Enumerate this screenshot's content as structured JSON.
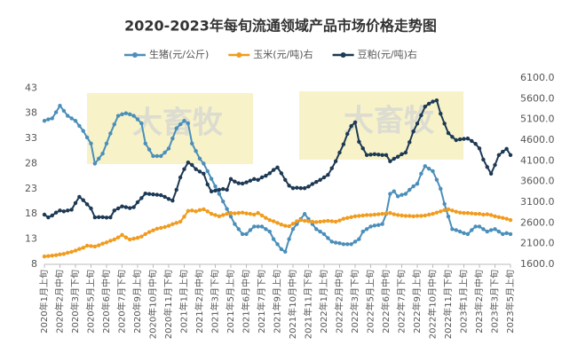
{
  "chart_data": {
    "type": "line",
    "title": "2020-2023年每旬流通领域产品市场价格走势图",
    "categories": [
      "2020年1月上旬",
      null,
      null,
      null,
      "2020年2月中旬",
      null,
      null,
      null,
      "2020年3月下旬",
      null,
      null,
      null,
      "2020年5月上旬",
      null,
      null,
      null,
      "2020年6月中旬",
      null,
      null,
      null,
      "2020年7月下旬",
      null,
      null,
      null,
      "2020年9月上旬",
      null,
      null,
      null,
      "2020年10月中旬",
      null,
      null,
      null,
      "2020年11月下旬",
      null,
      null,
      null,
      "2021年1月上旬",
      null,
      null,
      null,
      "2021年2月中旬",
      null,
      null,
      null,
      "2021年3月下旬",
      null,
      null,
      null,
      "2021年5月上旬",
      null,
      null,
      null,
      "2021年6月中旬",
      null,
      null,
      null,
      "2021年7月下旬",
      null,
      null,
      null,
      "2021年9月上旬",
      null,
      null,
      null,
      "2021年10月中旬",
      null,
      null,
      null,
      "2021年11月下旬",
      null,
      null,
      null,
      "2022年1月上旬",
      null,
      null,
      null,
      "2022年2月中旬",
      null,
      null,
      null,
      "2022年3月下旬",
      null,
      null,
      null,
      "2022年5月上旬",
      null,
      null,
      null,
      "2022年6月中旬",
      null,
      null,
      null,
      "2022年7月下旬",
      null,
      null,
      null,
      "2022年9月上旬",
      null,
      null,
      null,
      "2022年10月中旬",
      null,
      null,
      null,
      "2022年11月下旬",
      null,
      null,
      null,
      "2023年1月上旬",
      null,
      null,
      null,
      "2023年2月中旬",
      null,
      null,
      null,
      "2023年3月下旬",
      null,
      null,
      null,
      "2023年5月上旬"
    ],
    "series": [
      {
        "name": "生猪(元/公斤)",
        "color": "#4a8fba",
        "values": [
          36.5,
          36.8,
          37,
          38.2,
          39.5,
          38.5,
          37.5,
          37,
          36.5,
          35.5,
          34.5,
          33.2,
          32,
          28,
          29,
          30,
          32,
          34,
          35.8,
          37.5,
          37.8,
          38,
          37.8,
          37.5,
          36.8,
          36,
          32,
          30.8,
          29.5,
          29.5,
          29.5,
          30.2,
          31,
          33,
          35,
          35.8,
          36.5,
          36,
          32,
          30.5,
          29,
          28,
          26.5,
          25,
          23.5,
          22,
          20.5,
          19,
          17.5,
          16,
          15,
          14,
          14,
          14.8,
          15.5,
          15.5,
          15.5,
          15,
          14.5,
          13,
          12,
          11,
          10.5,
          13,
          15,
          16,
          17,
          18,
          17,
          16,
          15,
          14.5,
          14,
          13.2,
          12.5,
          12.3,
          12.2,
          12,
          12,
          12,
          12.5,
          13,
          14.5,
          15,
          15.5,
          15.7,
          15.8,
          16,
          18,
          22,
          22.5,
          21.5,
          21.8,
          22,
          22.8,
          23.5,
          24,
          26,
          27.5,
          27,
          26.5,
          24.8,
          23,
          20,
          17.5,
          15,
          14.8,
          14.5,
          14.2,
          14,
          14.8,
          15.5,
          15.5,
          15,
          14.5,
          14.8,
          15,
          14.5,
          14,
          14.2,
          14
        ]
      },
      {
        "name": "玉米(元/吨)右",
        "color": "#f09c1e",
        "axis": "y2",
        "values": [
          1790,
          1800,
          1810,
          1820,
          1840,
          1850,
          1880,
          1900,
          1930,
          1970,
          2000,
          2050,
          2040,
          2030,
          2060,
          2100,
          2130,
          2170,
          2200,
          2250,
          2310,
          2250,
          2200,
          2220,
          2240,
          2270,
          2330,
          2380,
          2420,
          2460,
          2480,
          2500,
          2530,
          2570,
          2600,
          2630,
          2750,
          2890,
          2900,
          2880,
          2910,
          2930,
          2880,
          2820,
          2790,
          2760,
          2790,
          2820,
          2840,
          2830,
          2840,
          2850,
          2830,
          2820,
          2800,
          2840,
          2780,
          2720,
          2670,
          2640,
          2600,
          2560,
          2530,
          2520,
          2580,
          2640,
          2670,
          2650,
          2640,
          2630,
          2620,
          2630,
          2640,
          2650,
          2640,
          2630,
          2660,
          2700,
          2720,
          2740,
          2760,
          2770,
          2780,
          2790,
          2790,
          2800,
          2810,
          2820,
          2830,
          2840,
          2810,
          2790,
          2780,
          2770,
          2770,
          2760,
          2770,
          2770,
          2780,
          2800,
          2820,
          2850,
          2880,
          2910,
          2930,
          2900,
          2870,
          2850,
          2840,
          2840,
          2830,
          2820,
          2820,
          2800,
          2810,
          2790,
          2760,
          2740,
          2720,
          2700,
          2670
        ]
      },
      {
        "name": "豆粕(元/吨)右",
        "color": "#1d3954",
        "axis": "y2",
        "values": [
          2800,
          2735,
          2780,
          2850,
          2900,
          2880,
          2900,
          2920,
          3080,
          3230,
          3150,
          3050,
          2950,
          2735,
          2740,
          2740,
          2730,
          2735,
          2900,
          2950,
          3000,
          2980,
          2960,
          2980,
          3100,
          3200,
          3310,
          3300,
          3290,
          3280,
          3270,
          3230,
          3180,
          3140,
          3400,
          3700,
          3900,
          4060,
          4000,
          3900,
          3840,
          3790,
          3530,
          3360,
          3380,
          3400,
          3420,
          3400,
          3660,
          3600,
          3560,
          3550,
          3580,
          3620,
          3660,
          3640,
          3700,
          3740,
          3800,
          3880,
          3940,
          3800,
          3640,
          3500,
          3440,
          3450,
          3440,
          3440,
          3480,
          3540,
          3590,
          3640,
          3700,
          3760,
          3920,
          4090,
          4300,
          4500,
          4750,
          4940,
          5030,
          4560,
          4400,
          4240,
          4250,
          4260,
          4250,
          4240,
          4240,
          4090,
          4150,
          4200,
          4260,
          4300,
          4550,
          4810,
          5000,
          5200,
          5410,
          5480,
          5530,
          5560,
          5240,
          5000,
          4770,
          4680,
          4600,
          4620,
          4630,
          4640,
          4580,
          4510,
          4400,
          4130,
          3950,
          3790,
          4000,
          4240,
          4320,
          4390,
          4240
        ]
      }
    ],
    "ylim": [
      8,
      45
    ],
    "yticks": [
      8,
      13,
      18,
      23,
      28,
      33,
      38,
      43
    ],
    "y2lim": [
      1600,
      6100
    ],
    "y2ticks": [
      {
        "value": 1600,
        "label": "1600.0"
      },
      {
        "value": 2100,
        "label": "2100.0"
      },
      {
        "value": 2600,
        "label": "2600.0"
      },
      {
        "value": 3100,
        "label": "3100.0"
      },
      {
        "value": 3600,
        "label": "3600.0"
      },
      {
        "value": 4100,
        "label": "4100.0"
      },
      {
        "value": 4600,
        "label": "4600.0"
      },
      {
        "value": 5100,
        "label": "5100.0"
      },
      {
        "value": 5600,
        "label": "5600.0"
      },
      {
        "value": 6100,
        "label": "6100.0"
      }
    ],
    "legend": "top"
  },
  "watermark": "大畜牧"
}
